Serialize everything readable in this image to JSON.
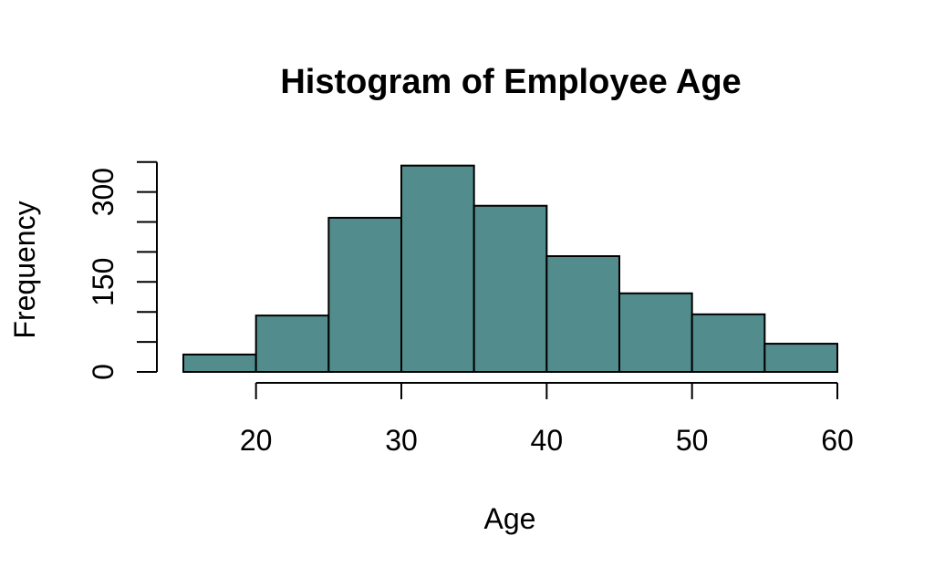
{
  "chart_data": {
    "type": "bar",
    "title": "Histogram of Employee Age",
    "xlabel": "Age",
    "ylabel": "Frequency",
    "bins": [
      {
        "start": 15,
        "end": 20,
        "count": 29
      },
      {
        "start": 20,
        "end": 25,
        "count": 94
      },
      {
        "start": 25,
        "end": 30,
        "count": 257
      },
      {
        "start": 30,
        "end": 35,
        "count": 344
      },
      {
        "start": 35,
        "end": 40,
        "count": 277
      },
      {
        "start": 40,
        "end": 45,
        "count": 193
      },
      {
        "start": 45,
        "end": 50,
        "count": 131
      },
      {
        "start": 50,
        "end": 55,
        "count": 96
      },
      {
        "start": 55,
        "end": 60,
        "count": 47
      }
    ],
    "xlim": [
      15,
      60
    ],
    "ylim": [
      0,
      345
    ],
    "x_ticks": [
      20,
      30,
      40,
      50,
      60
    ],
    "y_ticks": [
      0,
      50,
      100,
      150,
      200,
      250,
      300,
      350
    ],
    "y_tick_labels": [
      "0",
      "",
      "",
      "150",
      "",
      "",
      "300",
      ""
    ],
    "bar_color": "#528c8c",
    "grid": false,
    "legend": "none"
  }
}
